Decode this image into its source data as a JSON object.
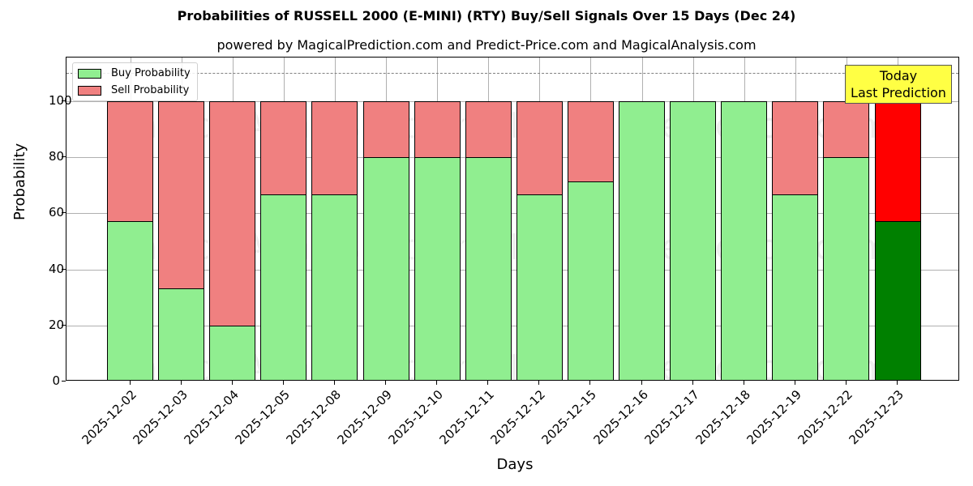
{
  "chart_data": {
    "type": "bar",
    "stacked": true,
    "title": "Probabilities of RUSSELL 2000 (E-MINI) (RTY) Buy/Sell Signals Over 15 Days (Dec 24)",
    "subtitle": "powered by MagicalPrediction.com and Predict-Price.com and MagicalAnalysis.com",
    "xlabel": "Days",
    "ylabel": "Probability",
    "ylim": [
      0,
      115
    ],
    "yticks": [
      0,
      20,
      40,
      60,
      80,
      100
    ],
    "grid": true,
    "reference_line": 110,
    "legend_position": "upper left",
    "categories": [
      "2025-12-02",
      "2025-12-03",
      "2025-12-04",
      "2025-12-05",
      "2025-12-08",
      "2025-12-09",
      "2025-12-10",
      "2025-12-11",
      "2025-12-12",
      "2025-12-15",
      "2025-12-16",
      "2025-12-17",
      "2025-12-18",
      "2025-12-19",
      "2025-12-22",
      "2025-12-23"
    ],
    "series": [
      {
        "name": "Buy Probability",
        "color": "#90ee90",
        "values": [
          57.14,
          33.33,
          20.0,
          66.67,
          66.67,
          80.0,
          80.0,
          80.0,
          66.67,
          71.43,
          100.0,
          100.0,
          100.0,
          66.67,
          80.0,
          57.14
        ]
      },
      {
        "name": "Sell Probability",
        "color": "#f08080",
        "values": [
          42.86,
          66.67,
          80.0,
          33.33,
          33.33,
          20.0,
          20.0,
          20.0,
          33.33,
          28.57,
          0.0,
          0.0,
          0.0,
          33.33,
          20.0,
          42.86
        ]
      }
    ],
    "highlight": {
      "index": 15,
      "buy_color": "#008000",
      "sell_color": "#ff0000"
    },
    "annotation": {
      "line1": "Today",
      "line2": "Last Prediction",
      "background": "#ffff44"
    },
    "watermarks": [
      "MagicalAnalysis.com",
      "MagicalPrediction.com"
    ]
  }
}
